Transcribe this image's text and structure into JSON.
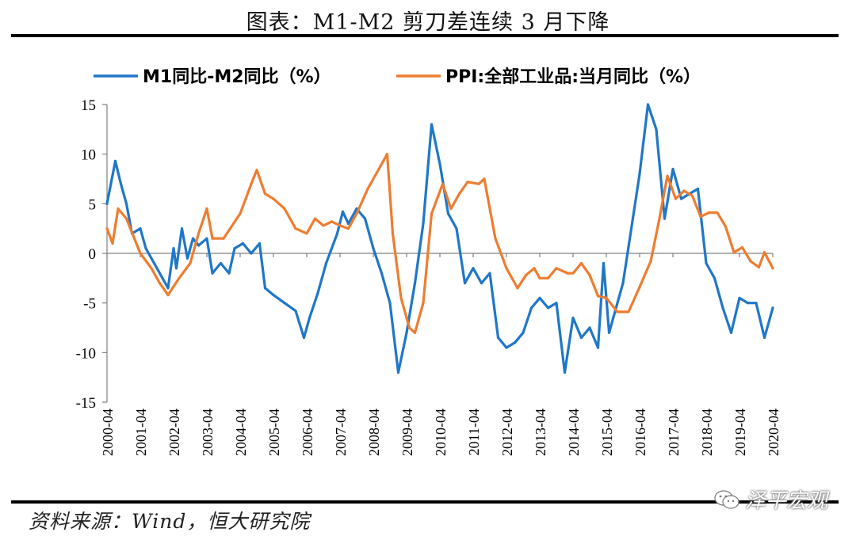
{
  "figure_title": "图表：M1-M2 剪刀差连续 3 月下降",
  "source_note": "资料来源：Wind，恒大研究院",
  "watermark_text": "泽平宏观",
  "icons": {
    "watermark": "wechat-icon"
  },
  "colors": {
    "series_1": "#1f77c8",
    "series_2": "#ed7d31",
    "axis": "#808080",
    "rule": "#000000"
  },
  "chart_data": {
    "type": "line",
    "title": "",
    "xlabel": "",
    "ylabel": "",
    "ylim": [
      -15,
      15
    ],
    "yticks": [
      -15,
      -10,
      -5,
      0,
      5,
      10,
      15
    ],
    "x_start": "2000-04",
    "x_end": "2020-04",
    "xticks": [
      "2000-04",
      "2001-04",
      "2002-04",
      "2003-04",
      "2004-04",
      "2005-04",
      "2006-04",
      "2007-04",
      "2008-04",
      "2009-04",
      "2010-04",
      "2011-04",
      "2012-04",
      "2013-04",
      "2014-04",
      "2015-04",
      "2016-04",
      "2017-04",
      "2018-04",
      "2019-04",
      "2020-04"
    ],
    "grid": false,
    "legend_position": "top",
    "series": [
      {
        "name": "M1同比-M2同比（%）",
        "color": "#1f77c8",
        "points": [
          [
            "2000-04",
            5.0
          ],
          [
            "2000-07",
            9.3
          ],
          [
            "2000-09",
            7.0
          ],
          [
            "2000-11",
            5.0
          ],
          [
            "2001-01",
            2.0
          ],
          [
            "2001-04",
            2.5
          ],
          [
            "2001-06",
            0.5
          ],
          [
            "2001-09",
            -1.0
          ],
          [
            "2001-12",
            -2.5
          ],
          [
            "2002-02",
            -3.5
          ],
          [
            "2002-04",
            0.5
          ],
          [
            "2002-05",
            -1.5
          ],
          [
            "2002-07",
            2.5
          ],
          [
            "2002-09",
            -0.5
          ],
          [
            "2002-11",
            1.5
          ],
          [
            "2003-01",
            0.8
          ],
          [
            "2003-04",
            1.5
          ],
          [
            "2003-06",
            -2.0
          ],
          [
            "2003-09",
            -1.0
          ],
          [
            "2003-12",
            -2.0
          ],
          [
            "2004-02",
            0.5
          ],
          [
            "2004-05",
            1.0
          ],
          [
            "2004-08",
            0.0
          ],
          [
            "2004-11",
            1.0
          ],
          [
            "2005-01",
            -3.5
          ],
          [
            "2005-04",
            -4.2
          ],
          [
            "2005-08",
            -5.0
          ],
          [
            "2005-12",
            -5.8
          ],
          [
            "2006-03",
            -8.5
          ],
          [
            "2006-05",
            -6.5
          ],
          [
            "2006-08",
            -4.0
          ],
          [
            "2006-11",
            -1.0
          ],
          [
            "2007-03",
            2.0
          ],
          [
            "2007-05",
            4.2
          ],
          [
            "2007-07",
            3.0
          ],
          [
            "2007-10",
            4.5
          ],
          [
            "2008-01",
            3.5
          ],
          [
            "2008-04",
            0.5
          ],
          [
            "2008-07",
            -2.0
          ],
          [
            "2008-10",
            -5.0
          ],
          [
            "2009-01",
            -12.0
          ],
          [
            "2009-04",
            -8.0
          ],
          [
            "2009-07",
            -3.0
          ],
          [
            "2009-10",
            3.0
          ],
          [
            "2010-01",
            13.0
          ],
          [
            "2010-04",
            9.0
          ],
          [
            "2010-07",
            4.0
          ],
          [
            "2010-10",
            2.5
          ],
          [
            "2011-01",
            -3.0
          ],
          [
            "2011-04",
            -1.5
          ],
          [
            "2011-07",
            -3.0
          ],
          [
            "2011-10",
            -2.0
          ],
          [
            "2012-01",
            -8.5
          ],
          [
            "2012-04",
            -9.5
          ],
          [
            "2012-07",
            -9.0
          ],
          [
            "2012-10",
            -8.0
          ],
          [
            "2013-01",
            -5.5
          ],
          [
            "2013-04",
            -4.5
          ],
          [
            "2013-07",
            -5.5
          ],
          [
            "2013-10",
            -5.0
          ],
          [
            "2014-01",
            -12.0
          ],
          [
            "2014-04",
            -6.5
          ],
          [
            "2014-07",
            -8.5
          ],
          [
            "2014-10",
            -7.5
          ],
          [
            "2015-01",
            -9.5
          ],
          [
            "2015-03",
            -1.0
          ],
          [
            "2015-05",
            -8.0
          ],
          [
            "2015-07",
            -6.0
          ],
          [
            "2015-10",
            -3.0
          ],
          [
            "2016-01",
            2.5
          ],
          [
            "2016-04",
            8.0
          ],
          [
            "2016-07",
            15.0
          ],
          [
            "2016-10",
            12.5
          ],
          [
            "2017-01",
            3.5
          ],
          [
            "2017-04",
            8.5
          ],
          [
            "2017-07",
            5.5
          ],
          [
            "2017-10",
            6.0
          ],
          [
            "2018-01",
            6.5
          ],
          [
            "2018-04",
            -1.0
          ],
          [
            "2018-07",
            -2.5
          ],
          [
            "2018-10",
            -5.5
          ],
          [
            "2019-01",
            -8.0
          ],
          [
            "2019-04",
            -4.5
          ],
          [
            "2019-07",
            -5.0
          ],
          [
            "2019-10",
            -5.0
          ],
          [
            "2020-01",
            -8.5
          ],
          [
            "2020-04",
            -5.5
          ]
        ]
      },
      {
        "name": "PPI:全部工业品:当月同比（%）",
        "color": "#ed7d31",
        "points": [
          [
            "2000-04",
            2.5
          ],
          [
            "2000-06",
            1.0
          ],
          [
            "2000-08",
            4.5
          ],
          [
            "2000-11",
            3.5
          ],
          [
            "2001-04",
            0.0
          ],
          [
            "2001-08",
            -1.5
          ],
          [
            "2001-11",
            -3.0
          ],
          [
            "2002-02",
            -4.2
          ],
          [
            "2002-06",
            -2.5
          ],
          [
            "2002-10",
            -1.0
          ],
          [
            "2003-01",
            2.0
          ],
          [
            "2003-04",
            4.5
          ],
          [
            "2003-06",
            1.5
          ],
          [
            "2003-10",
            1.5
          ],
          [
            "2004-04",
            4.0
          ],
          [
            "2004-08",
            7.0
          ],
          [
            "2004-10",
            8.4
          ],
          [
            "2005-01",
            6.0
          ],
          [
            "2005-04",
            5.5
          ],
          [
            "2005-08",
            4.5
          ],
          [
            "2005-12",
            2.5
          ],
          [
            "2006-04",
            2.0
          ],
          [
            "2006-07",
            3.5
          ],
          [
            "2006-10",
            2.8
          ],
          [
            "2007-01",
            3.2
          ],
          [
            "2007-04",
            2.8
          ],
          [
            "2007-07",
            2.5
          ],
          [
            "2007-10",
            4.0
          ],
          [
            "2008-02",
            6.5
          ],
          [
            "2008-06",
            8.5
          ],
          [
            "2008-09",
            10.0
          ],
          [
            "2008-11",
            2.0
          ],
          [
            "2009-02",
            -4.5
          ],
          [
            "2009-05",
            -7.5
          ],
          [
            "2009-07",
            -8.0
          ],
          [
            "2009-10",
            -5.0
          ],
          [
            "2010-01",
            4.0
          ],
          [
            "2010-05",
            7.0
          ],
          [
            "2010-08",
            4.5
          ],
          [
            "2010-11",
            6.0
          ],
          [
            "2011-02",
            7.2
          ],
          [
            "2011-06",
            7.0
          ],
          [
            "2011-08",
            7.5
          ],
          [
            "2011-12",
            1.5
          ],
          [
            "2012-04",
            -1.5
          ],
          [
            "2012-08",
            -3.5
          ],
          [
            "2012-11",
            -2.2
          ],
          [
            "2013-02",
            -1.5
          ],
          [
            "2013-04",
            -2.5
          ],
          [
            "2013-07",
            -2.5
          ],
          [
            "2013-10",
            -1.5
          ],
          [
            "2014-02",
            -2.0
          ],
          [
            "2014-04",
            -2.0
          ],
          [
            "2014-07",
            -1.0
          ],
          [
            "2014-10",
            -2.2
          ],
          [
            "2015-01",
            -4.3
          ],
          [
            "2015-04",
            -4.5
          ],
          [
            "2015-08",
            -5.9
          ],
          [
            "2015-12",
            -5.9
          ],
          [
            "2016-04",
            -3.4
          ],
          [
            "2016-08",
            -0.8
          ],
          [
            "2016-11",
            3.3
          ],
          [
            "2017-02",
            7.8
          ],
          [
            "2017-05",
            5.5
          ],
          [
            "2017-08",
            6.3
          ],
          [
            "2017-11",
            5.8
          ],
          [
            "2018-02",
            3.7
          ],
          [
            "2018-05",
            4.1
          ],
          [
            "2018-08",
            4.1
          ],
          [
            "2018-11",
            2.7
          ],
          [
            "2019-02",
            0.1
          ],
          [
            "2019-05",
            0.6
          ],
          [
            "2019-08",
            -0.8
          ],
          [
            "2019-11",
            -1.4
          ],
          [
            "2020-01",
            0.1
          ],
          [
            "2020-04",
            -1.5
          ]
        ]
      }
    ]
  }
}
